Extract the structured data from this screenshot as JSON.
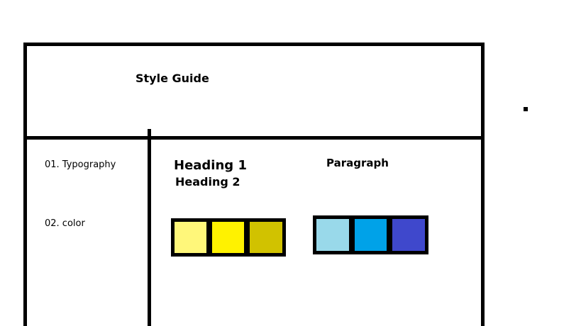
{
  "header": {
    "title": "Style Guide"
  },
  "sidebar": {
    "items": [
      {
        "label": "01. Typography"
      },
      {
        "label": "02. color"
      }
    ]
  },
  "typography": {
    "heading1": "Heading 1",
    "heading2": "Heading 2",
    "paragraph": "Paragraph"
  },
  "colors": {
    "yellow_swatches": [
      "#fff77a",
      "#fff200",
      "#d1c200"
    ],
    "blue_swatches": [
      "#99d9ea",
      "#00a2e8",
      "#3f48cc"
    ]
  }
}
